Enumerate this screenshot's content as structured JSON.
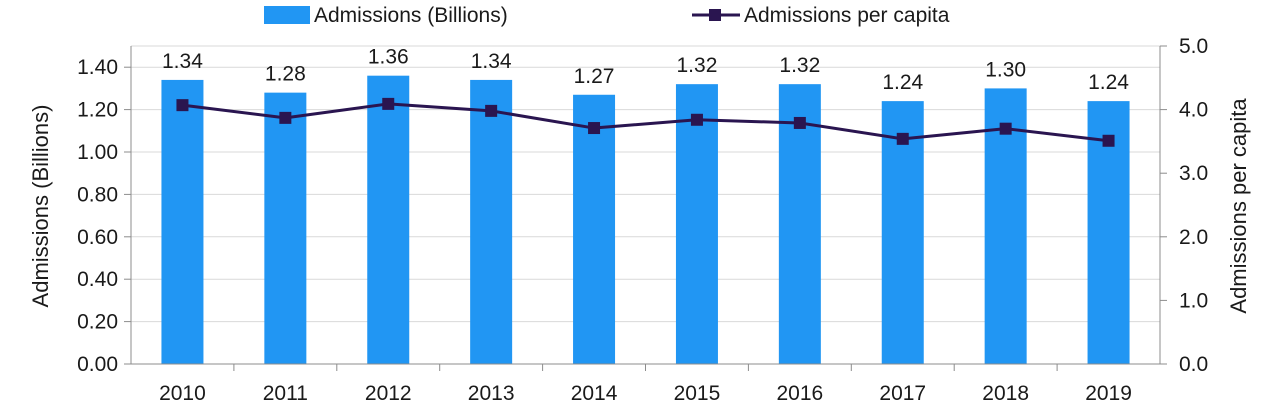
{
  "chart_data": {
    "type": "bar",
    "categories": [
      "2010",
      "2011",
      "2012",
      "2013",
      "2014",
      "2015",
      "2016",
      "2017",
      "2018",
      "2019"
    ],
    "series": [
      {
        "name": "Admissions (Billions)",
        "type": "bar",
        "axis": "left",
        "color": "#2196f3",
        "values": [
          1.34,
          1.28,
          1.36,
          1.34,
          1.27,
          1.32,
          1.32,
          1.24,
          1.3,
          1.24
        ],
        "value_labels": [
          "1.34",
          "1.28",
          "1.36",
          "1.34",
          "1.27",
          "1.32",
          "1.32",
          "1.24",
          "1.30",
          "1.24"
        ]
      },
      {
        "name": "Admissions per capita",
        "type": "line",
        "axis": "right",
        "color": "#2a1550",
        "marker": "square",
        "values": [
          4.07,
          3.87,
          4.09,
          3.98,
          3.71,
          3.84,
          3.79,
          3.54,
          3.7,
          3.51
        ]
      }
    ],
    "ylabel_left": "Admissions (Billions)",
    "ylabel_right": "Admissions per capita",
    "ylim_left": [
      0,
      1.5
    ],
    "ylim_right": [
      0,
      5.0
    ],
    "yticks_left": [
      "0.00",
      "0.20",
      "0.40",
      "0.60",
      "0.80",
      "1.00",
      "1.20",
      "1.40"
    ],
    "yticks_right": [
      "0.0",
      "1.0",
      "2.0",
      "3.0",
      "4.0",
      "5.0"
    ],
    "grid": true,
    "legend_position": "top"
  }
}
